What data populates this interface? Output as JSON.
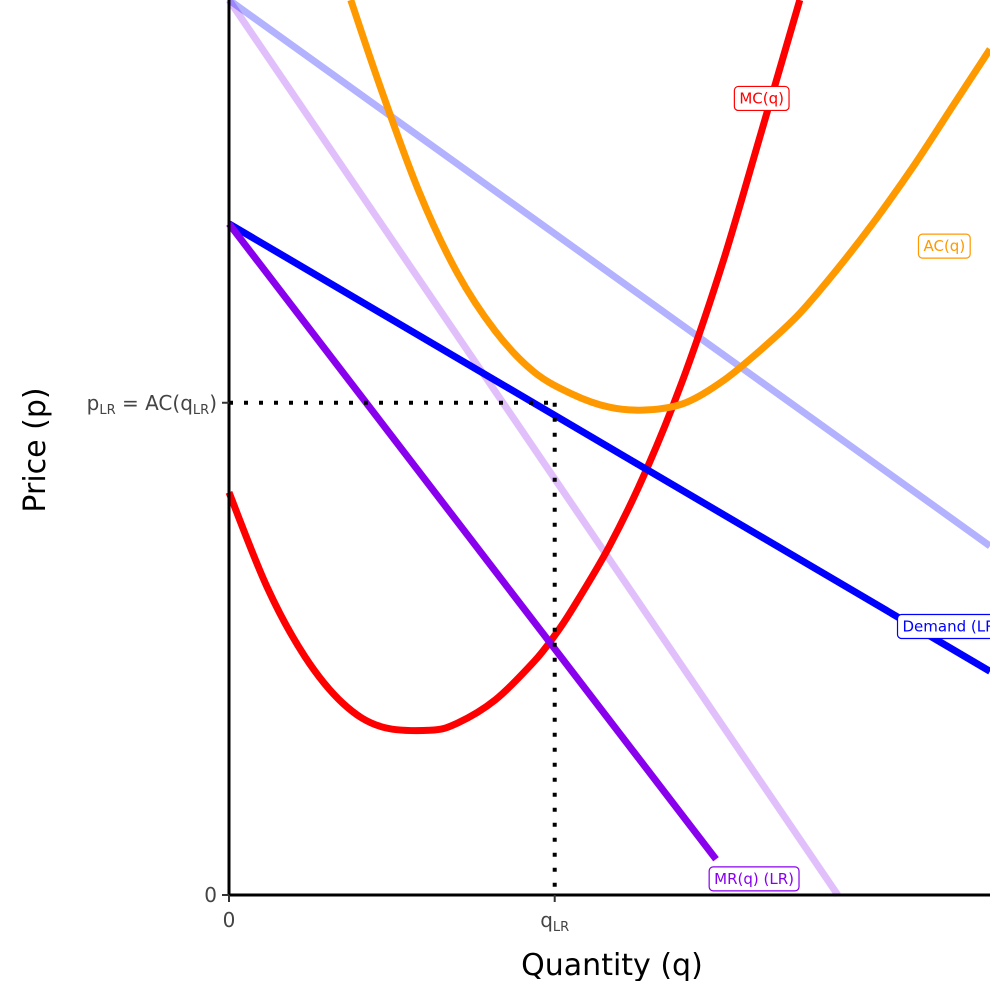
{
  "chart_data": {
    "type": "line",
    "title": "",
    "xlabel": "Quantity (q)",
    "ylabel": "Price (p)",
    "xlim": [
      0,
      10
    ],
    "ylim": [
      0,
      10
    ],
    "grid": false,
    "legend": "none",
    "x_ticks": [
      {
        "value": 0,
        "label": "0"
      },
      {
        "value": 4.28,
        "label": "q",
        "sub": "LR"
      }
    ],
    "y_ticks": [
      {
        "value": 0,
        "label": "0"
      },
      {
        "value": 5.5,
        "label_parts": [
          {
            "t": "p"
          },
          {
            "t": "LR",
            "sub": true
          },
          {
            "t": " = AC("
          },
          {
            "t": "q"
          },
          {
            "t": "LR",
            "sub": true
          },
          {
            "t": ")"
          }
        ]
      }
    ],
    "series": [
      {
        "name": "MC(q)",
        "color": "#ff0000",
        "opacity": 1,
        "points": [
          [
            0,
            4.5
          ],
          [
            0.5,
            3.44
          ],
          [
            1,
            2.66
          ],
          [
            1.5,
            2.14
          ],
          [
            2,
            1.88
          ],
          [
            2.64,
            1.84
          ],
          [
            3,
            1.92
          ],
          [
            3.5,
            2.18
          ],
          [
            4,
            2.6
          ],
          [
            4.28,
            2.9
          ],
          [
            4.5,
            3.18
          ],
          [
            5,
            3.9
          ],
          [
            5.5,
            4.78
          ],
          [
            6,
            5.84
          ],
          [
            6.5,
            7.1
          ],
          [
            7,
            8.54
          ],
          [
            7.5,
            10
          ]
        ]
      },
      {
        "name": "AC(q)",
        "color": "#ff9900",
        "opacity": 1,
        "points": [
          [
            1.6,
            10
          ],
          [
            2,
            9
          ],
          [
            2.5,
            7.85
          ],
          [
            3,
            6.95
          ],
          [
            3.5,
            6.3
          ],
          [
            4,
            5.85
          ],
          [
            4.5,
            5.6
          ],
          [
            5,
            5.45
          ],
          [
            5.5,
            5.42
          ],
          [
            6,
            5.5
          ],
          [
            6.5,
            5.75
          ],
          [
            7,
            6.1
          ],
          [
            7.5,
            6.5
          ],
          [
            8,
            7
          ],
          [
            8.5,
            7.55
          ],
          [
            9,
            8.15
          ],
          [
            9.5,
            8.8
          ],
          [
            10,
            9.45
          ]
        ]
      },
      {
        "name": "Demand (LR)",
        "color": "#0000ff",
        "opacity": 1,
        "points": [
          [
            0,
            7.5
          ],
          [
            10,
            2.5
          ]
        ]
      },
      {
        "name": "MR(q) (LR)",
        "color": "#8800ee",
        "opacity": 1,
        "points": [
          [
            0,
            7.5
          ],
          [
            6.4,
            0.4
          ]
        ]
      },
      {
        "name": "",
        "color": "#0000ff",
        "opacity": 0.3,
        "points": [
          [
            0,
            10
          ],
          [
            10,
            3.9
          ]
        ]
      },
      {
        "name": "",
        "color": "#8800ee",
        "opacity": 0.25,
        "points": [
          [
            0,
            10
          ],
          [
            8,
            0
          ]
        ]
      }
    ],
    "labels": [
      {
        "series": 0,
        "x": 7.0,
        "y": 8.9
      },
      {
        "series": 1,
        "x": 9.4,
        "y": 7.25
      },
      {
        "series": 2,
        "x": 9.5,
        "y": 3.0
      },
      {
        "series": 3,
        "x": 6.9,
        "y": 0.18
      }
    ],
    "reference": {
      "x": 4.28,
      "y": 5.5,
      "style": "dotted",
      "color": "#000000"
    }
  }
}
